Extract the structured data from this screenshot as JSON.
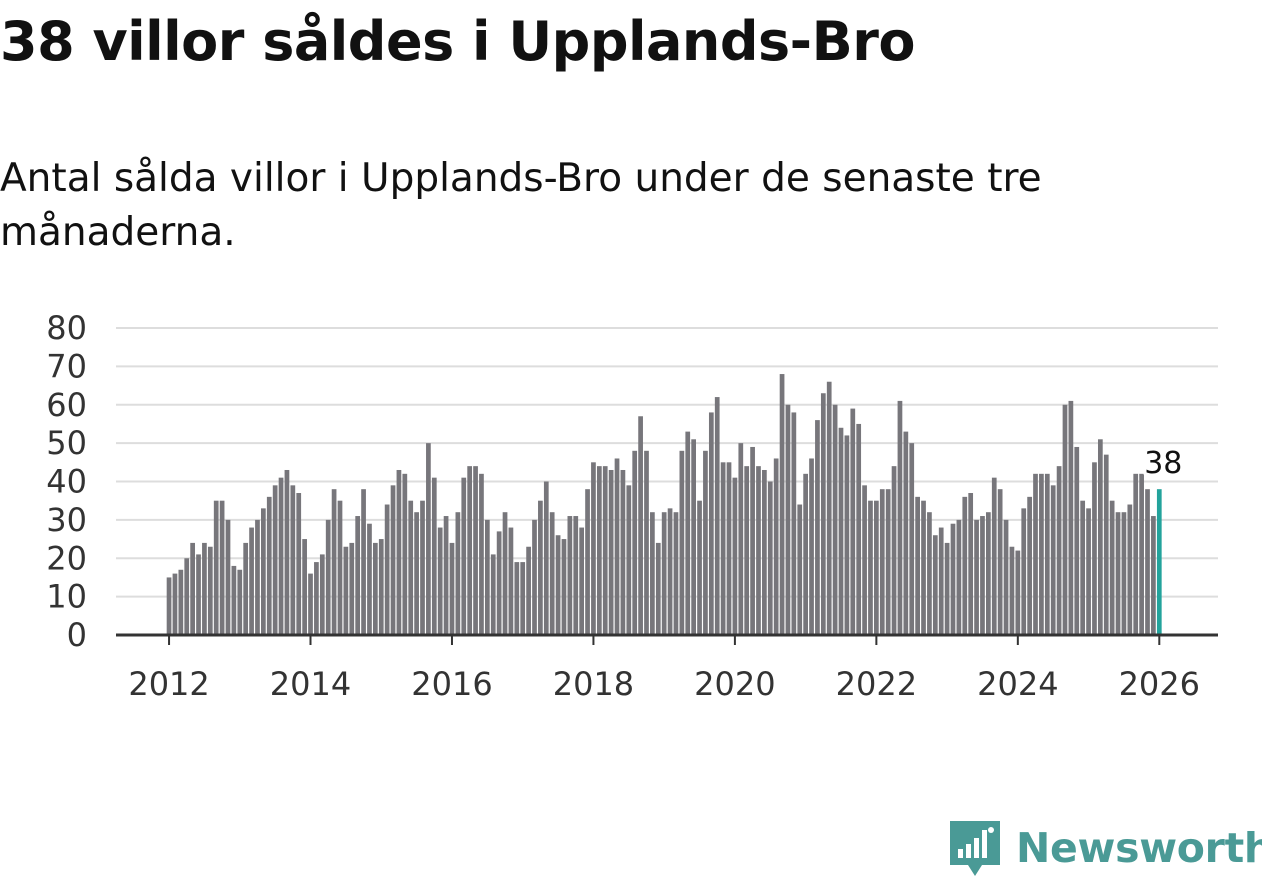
{
  "title": "38 villor såldes i Upplands-Bro",
  "subtitle": "Antal sålda villor i Upplands-Bro under de senaste tre månaderna.",
  "brand": {
    "name": "Newsworthy",
    "icon": "newsworthy-logo-icon",
    "color": "#4a9a96"
  },
  "colors": {
    "bar": "#77767b",
    "highlight": "#23a39c",
    "grid": "#dddddd",
    "axis": "#333333"
  },
  "chart_data": {
    "type": "bar",
    "title": "38 villor såldes i Upplands-Bro",
    "xlabel": "",
    "ylabel": "",
    "ylim": [
      0,
      80
    ],
    "yticks": [
      0,
      10,
      20,
      30,
      40,
      50,
      60,
      70,
      80
    ],
    "xticks": [
      "2012",
      "2014",
      "2016",
      "2018",
      "2020",
      "2022",
      "2024",
      "2026"
    ],
    "xtick_positions": [
      2012,
      2014,
      2016,
      2018,
      2020,
      2022,
      2024,
      2026
    ],
    "xlim": [
      2011.25,
      2026.83
    ],
    "start": "2012-01",
    "grid": true,
    "legend": "none",
    "highlight_label": "38",
    "series": [
      {
        "name": "Antal sålda villor",
        "values": [
          15,
          16,
          17,
          20,
          24,
          21,
          24,
          23,
          35,
          35,
          30,
          18,
          17,
          24,
          28,
          30,
          33,
          36,
          39,
          41,
          43,
          39,
          37,
          25,
          16,
          19,
          21,
          30,
          38,
          35,
          23,
          24,
          31,
          38,
          29,
          24,
          25,
          34,
          39,
          43,
          42,
          35,
          32,
          35,
          50,
          41,
          28,
          31,
          24,
          32,
          41,
          44,
          44,
          42,
          30,
          21,
          27,
          32,
          28,
          19,
          19,
          23,
          30,
          35,
          40,
          32,
          26,
          25,
          31,
          31,
          28,
          38,
          45,
          44,
          44,
          43,
          46,
          43,
          39,
          48,
          57,
          48,
          32,
          24,
          32,
          33,
          32,
          48,
          53,
          51,
          35,
          48,
          58,
          62,
          45,
          45,
          41,
          50,
          44,
          49,
          44,
          43,
          40,
          46,
          68,
          60,
          58,
          34,
          42,
          46,
          56,
          63,
          66,
          60,
          54,
          52,
          59,
          55,
          39,
          35,
          35,
          38,
          38,
          44,
          61,
          53,
          50,
          36,
          35,
          32,
          26,
          28,
          24,
          29,
          30,
          36,
          37,
          30,
          31,
          32,
          41,
          38,
          30,
          23,
          22,
          33,
          36,
          42,
          42,
          42,
          39,
          44,
          60,
          61,
          49,
          35,
          33,
          45,
          51,
          47,
          35,
          32,
          32,
          34,
          42,
          42,
          38,
          31,
          38
        ]
      }
    ]
  }
}
